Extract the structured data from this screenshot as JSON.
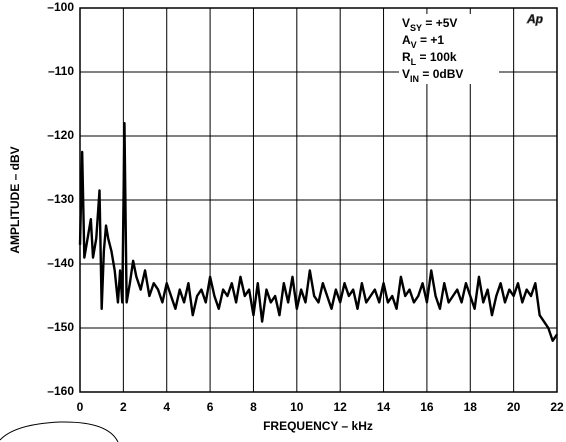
{
  "chart_data": {
    "type": "line",
    "x_label": "FREQUENCY – kHz",
    "y_label": "AMPLITUDE – dBV",
    "xlim": [
      0,
      22
    ],
    "xticks": [
      0,
      2,
      4,
      6,
      8,
      10,
      12,
      14,
      16,
      18,
      20,
      22
    ],
    "ylim": [
      -160,
      -100
    ],
    "yticks": [
      {
        "value": -100,
        "label": "–100"
      },
      {
        "value": -110,
        "label": "–110"
      },
      {
        "value": -120,
        "label": "–120"
      },
      {
        "value": -130,
        "label": "–130"
      },
      {
        "value": -140,
        "label": "–140"
      },
      {
        "value": -150,
        "label": "–150"
      },
      {
        "value": -160,
        "label": "–160"
      }
    ],
    "grid": true,
    "logo": "Ap",
    "annotations": [
      [
        {
          "text": "V"
        },
        {
          "text": "SY",
          "sub": true
        },
        {
          "text": " = +5V"
        }
      ],
      [
        {
          "text": "A"
        },
        {
          "text": "V",
          "sub": true
        },
        {
          "text": " = +1"
        }
      ],
      [
        {
          "text": "R"
        },
        {
          "text": "L",
          "sub": true
        },
        {
          "text": " = 100k"
        }
      ],
      [
        {
          "text": "V"
        },
        {
          "text": "IN",
          "sub": true
        },
        {
          "text": " = 0dBV"
        }
      ]
    ],
    "series": [
      {
        "color": "#000000",
        "x": [
          0,
          0.1,
          0.2,
          0.35,
          0.5,
          0.6,
          0.75,
          0.9,
          1.0,
          1.1,
          1.2,
          1.3,
          1.45,
          1.6,
          1.75,
          1.85,
          1.95,
          2.05,
          2.15,
          2.3,
          2.45,
          2.6,
          2.8,
          3.0,
          3.2,
          3.4,
          3.6,
          3.8,
          4.0,
          4.2,
          4.4,
          4.6,
          4.8,
          5.0,
          5.2,
          5.4,
          5.6,
          5.8,
          6.0,
          6.2,
          6.4,
          6.6,
          6.8,
          7.0,
          7.2,
          7.4,
          7.6,
          7.8,
          8.0,
          8.2,
          8.4,
          8.6,
          8.8,
          9.0,
          9.2,
          9.4,
          9.6,
          9.8,
          10.0,
          10.2,
          10.4,
          10.6,
          10.8,
          11.0,
          11.2,
          11.4,
          11.6,
          11.8,
          12.0,
          12.2,
          12.4,
          12.6,
          12.8,
          13.0,
          13.2,
          13.4,
          13.6,
          13.8,
          14.0,
          14.2,
          14.4,
          14.6,
          14.8,
          15.0,
          15.2,
          15.4,
          15.6,
          15.8,
          16.0,
          16.2,
          16.4,
          16.6,
          16.8,
          17.0,
          17.2,
          17.4,
          17.6,
          17.8,
          18.0,
          18.2,
          18.4,
          18.6,
          18.8,
          19.0,
          19.2,
          19.4,
          19.6,
          19.8,
          20.0,
          20.2,
          20.4,
          20.6,
          20.8,
          21.0,
          21.2,
          21.4,
          21.6,
          21.8,
          22.0
        ],
        "values": [
          -137,
          -122.5,
          -139,
          -136,
          -133,
          -139,
          -136,
          -128.5,
          -147,
          -138,
          -134,
          -136,
          -138,
          -141,
          -146,
          -141,
          -146,
          -118,
          -146,
          -143,
          -139.5,
          -142,
          -144,
          -141,
          -145,
          -143,
          -144,
          -146,
          -143,
          -145,
          -147,
          -144,
          -146,
          -143,
          -148,
          -145,
          -144,
          -146,
          -142,
          -145,
          -147,
          -144,
          -145,
          -143,
          -146,
          -142,
          -145,
          -144,
          -148,
          -143,
          -149,
          -144,
          -146,
          -145,
          -148,
          -143,
          -146,
          -142,
          -147,
          -144,
          -146,
          -141,
          -145,
          -146,
          -143,
          -145,
          -147,
          -144,
          -146,
          -143,
          -145,
          -144,
          -147,
          -143,
          -146,
          -145,
          -144,
          -146,
          -143,
          -146,
          -145,
          -147,
          -142,
          -145,
          -144,
          -146,
          -145,
          -143,
          -146,
          -141,
          -145,
          -147,
          -143,
          -146,
          -145,
          -144,
          -146,
          -143,
          -145,
          -147,
          -142,
          -146,
          -144,
          -148,
          -145,
          -143,
          -146,
          -144,
          -145,
          -143,
          -146,
          -144,
          -145,
          -143,
          -148,
          -149,
          -150,
          -152,
          -151
        ]
      }
    ]
  }
}
